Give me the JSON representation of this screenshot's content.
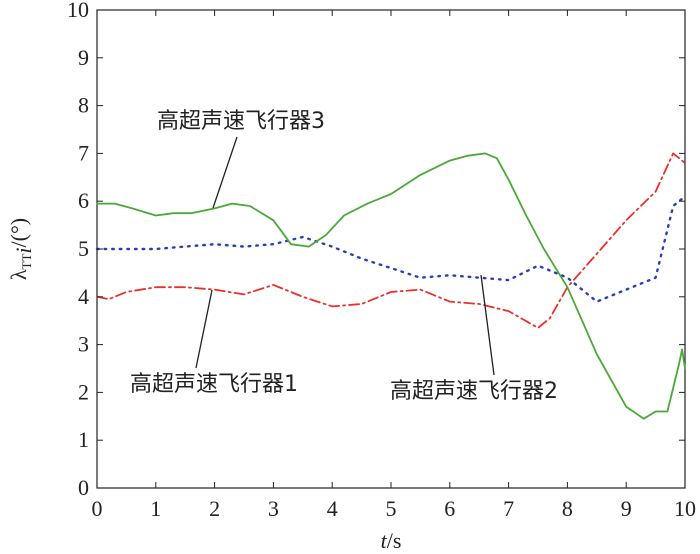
{
  "chart_data": {
    "type": "line",
    "xlabel": "t/s",
    "ylabel": "λ_TTi/(°)",
    "xlim": [
      0,
      10
    ],
    "ylim": [
      0,
      10
    ],
    "xticks": [
      0,
      1,
      2,
      3,
      4,
      5,
      6,
      7,
      8,
      9,
      10
    ],
    "yticks": [
      0,
      1,
      2,
      3,
      4,
      5,
      6,
      7,
      8,
      9,
      10
    ],
    "grid": false,
    "series": [
      {
        "name": "高超声速飞行器1",
        "color": "#e8312a",
        "style": "dashdot",
        "x": [
          0,
          0.2,
          0.5,
          1,
          1.5,
          2,
          2.5,
          3,
          3.5,
          4,
          4.5,
          5,
          5.5,
          6,
          6.5,
          7,
          7.5,
          7.7,
          8,
          8.5,
          9,
          9.5,
          9.8,
          10
        ],
        "y": [
          4.0,
          3.95,
          4.1,
          4.2,
          4.2,
          4.15,
          4.05,
          4.25,
          4.0,
          3.8,
          3.85,
          4.1,
          4.15,
          3.9,
          3.85,
          3.7,
          3.35,
          3.55,
          4.2,
          4.9,
          5.6,
          6.2,
          7.0,
          6.8
        ]
      },
      {
        "name": "高超声速飞行器2",
        "color": "#2b3fb5",
        "style": "dotted",
        "x": [
          0,
          0.5,
          1,
          1.5,
          2,
          2.5,
          3,
          3.5,
          4,
          4.5,
          5,
          5.5,
          6,
          6.5,
          7,
          7.5,
          8,
          8.5,
          9,
          9.5,
          9.8,
          10
        ],
        "y": [
          5.0,
          5.0,
          5.0,
          5.05,
          5.1,
          5.05,
          5.1,
          5.25,
          5.05,
          4.8,
          4.6,
          4.4,
          4.45,
          4.4,
          4.35,
          4.65,
          4.4,
          3.9,
          4.15,
          4.4,
          5.9,
          6.1
        ]
      },
      {
        "name": "高超声速飞行器3",
        "color": "#4aa838",
        "style": "solid",
        "x": [
          0,
          0.3,
          0.6,
          1,
          1.3,
          1.6,
          2,
          2.3,
          2.6,
          3,
          3.3,
          3.6,
          3.9,
          4.2,
          4.6,
          5,
          5.5,
          6,
          6.3,
          6.6,
          6.8,
          7,
          7.3,
          7.6,
          8,
          8.5,
          9,
          9.3,
          9.5,
          9.7,
          9.9,
          9.95,
          10
        ],
        "y": [
          5.95,
          5.95,
          5.85,
          5.7,
          5.75,
          5.75,
          5.85,
          5.95,
          5.9,
          5.6,
          5.1,
          5.05,
          5.3,
          5.7,
          5.95,
          6.15,
          6.55,
          6.85,
          6.95,
          7.0,
          6.9,
          6.45,
          5.7,
          5.0,
          4.2,
          2.8,
          1.7,
          1.45,
          1.6,
          1.6,
          2.6,
          2.9,
          2.5
        ]
      }
    ],
    "annotations": [
      {
        "text": "高超声速飞行器3",
        "target_series": 2
      },
      {
        "text": "高超声速飞行器1",
        "target_series": 0
      },
      {
        "text": "高超声速飞行器2",
        "target_series": 1
      }
    ]
  }
}
